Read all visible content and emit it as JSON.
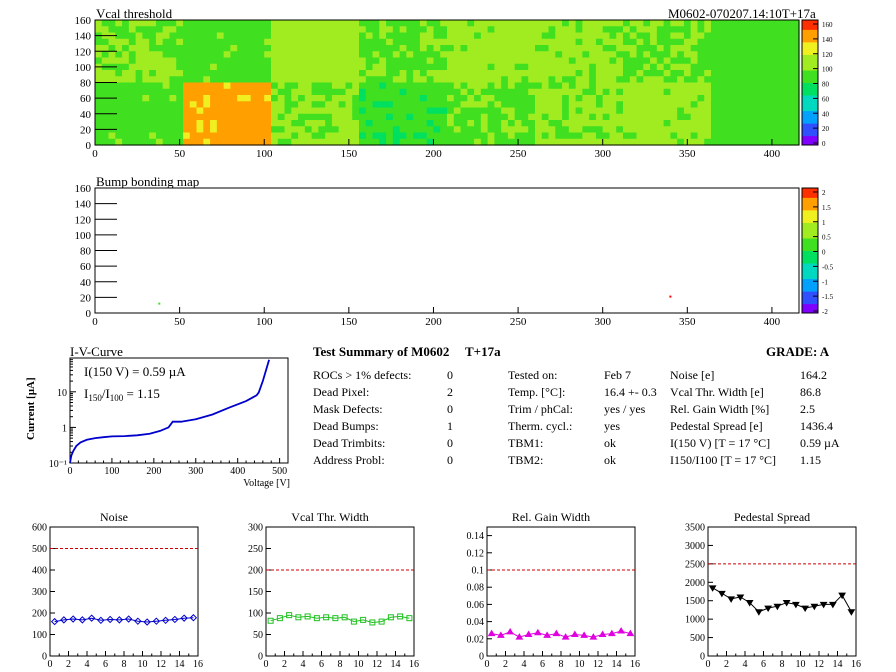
{
  "header_right": "M0602-070207.14:10T+17a",
  "vcal_map": {
    "title": "Vcal threshold",
    "x_ticks": [
      "0",
      "50",
      "100",
      "150",
      "200",
      "250",
      "300",
      "350",
      "400"
    ],
    "y_ticks": [
      "0",
      "20",
      "40",
      "60",
      "80",
      "100",
      "120",
      "140",
      "160"
    ],
    "xlim": [
      0,
      416
    ],
    "ylim": [
      0,
      160
    ],
    "z_ticks": [
      "0",
      "20",
      "40",
      "60",
      "80",
      "100",
      "120",
      "140",
      "160"
    ],
    "colors": [
      "#8000ff",
      "#3050ff",
      "#00a0ff",
      "#00d8c0",
      "#00e060",
      "#40e020",
      "#a0ec20",
      "#f0f020",
      "#ffa000",
      "#ff3000"
    ],
    "roc_levels": [
      [
        0.62,
        0.58,
        0.66,
        0.6,
        0.64,
        0.63,
        0.6,
        0.55
      ],
      [
        0.58,
        0.86,
        0.62,
        0.52,
        0.6,
        0.63,
        0.64,
        0.56
      ]
    ]
  },
  "bump_map": {
    "title": "Bump bonding map",
    "x_ticks": [
      "0",
      "50",
      "100",
      "150",
      "200",
      "250",
      "300",
      "350",
      "400"
    ],
    "y_ticks": [
      "0",
      "20",
      "40",
      "60",
      "80",
      "100",
      "120",
      "140",
      "160"
    ],
    "xlim": [
      0,
      416
    ],
    "ylim": [
      0,
      160
    ],
    "z_ticks": [
      "-2",
      "-1.5",
      "-1",
      "-0.5",
      "0",
      "0.5",
      "1",
      "1.5",
      "2"
    ],
    "hits": [
      {
        "x": 340,
        "y": 21,
        "color": "#ff0000"
      },
      {
        "x": 38,
        "y": 12,
        "color": "#40e020"
      }
    ]
  },
  "iv": {
    "title": "I-V-Curve",
    "line1": "I(150 V) = 0.59 µA",
    "line2_a": "I",
    "line2_sub1": "150",
    "line2_b": "/I",
    "line2_sub2": "100",
    "line2_c": " =  1.15",
    "ylabel": "Current [µA]",
    "xlabel": "Voltage [V]",
    "x_ticks": [
      "0",
      "100",
      "200",
      "300",
      "400",
      "500"
    ],
    "y_ticks": [
      "10⁻¹",
      "1",
      "10"
    ],
    "xlim": [
      0,
      520
    ],
    "ylog": [
      -1,
      1.95
    ],
    "points": [
      [
        0,
        0.1
      ],
      [
        3,
        0.16
      ],
      [
        8,
        0.22
      ],
      [
        15,
        0.3
      ],
      [
        25,
        0.38
      ],
      [
        40,
        0.45
      ],
      [
        60,
        0.5
      ],
      [
        80,
        0.53
      ],
      [
        100,
        0.56
      ],
      [
        130,
        0.57
      ],
      [
        160,
        0.6
      ],
      [
        190,
        0.66
      ],
      [
        215,
        0.8
      ],
      [
        235,
        1.0
      ],
      [
        245,
        1.45
      ],
      [
        265,
        1.45
      ],
      [
        300,
        1.7
      ],
      [
        340,
        2.3
      ],
      [
        380,
        3.6
      ],
      [
        420,
        5.5
      ],
      [
        445,
        8.0
      ],
      [
        450,
        9.5
      ],
      [
        460,
        20
      ],
      [
        470,
        50
      ],
      [
        475,
        80
      ]
    ]
  },
  "summary": {
    "title": "Test Summary of M0602",
    "temp_tag": "T+17a",
    "grade": "GRADE:  A",
    "col1": [
      {
        "label": "ROCs > 1% defects:",
        "value": "0"
      },
      {
        "label": "Dead Pixel:",
        "value": "2"
      },
      {
        "label": "Mask Defects:",
        "value": "0"
      },
      {
        "label": "Dead Bumps:",
        "value": "1"
      },
      {
        "label": "Dead Trimbits:",
        "value": "0"
      },
      {
        "label": "Address Probl:",
        "value": "0"
      }
    ],
    "col2": [
      {
        "label": "Tested on:",
        "value": "Feb 7"
      },
      {
        "label": "Temp. [°C]:",
        "value": "16.4 +- 0.3"
      },
      {
        "label": "Trim / phCal:",
        "value": "yes / yes"
      },
      {
        "label": "Therm. cycl.:",
        "value": "yes"
      },
      {
        "label": "TBM1:",
        "value": "ok"
      },
      {
        "label": "TBM2:",
        "value": "ok"
      }
    ],
    "col3": [
      {
        "label": "Noise [e]",
        "value": "164.2"
      },
      {
        "label": "Vcal Thr. Width [e]",
        "value": "86.8"
      },
      {
        "label": "Rel. Gain Width [%]",
        "value": "2.5"
      },
      {
        "label": "Pedestal Spread [e]",
        "value": "1436.4"
      },
      {
        "label": "I(150 V) [T = 17 °C]",
        "value": "0.59 µA"
      },
      {
        "label": "I150/I100  [T = 17 °C]",
        "value": "1.15"
      }
    ]
  },
  "chart_data": [
    {
      "type": "line",
      "title": "Noise",
      "x": [
        0,
        1,
        2,
        3,
        4,
        5,
        6,
        7,
        8,
        9,
        10,
        11,
        12,
        13,
        14,
        15
      ],
      "values": [
        160,
        168,
        172,
        168,
        176,
        166,
        170,
        168,
        172,
        162,
        158,
        162,
        166,
        170,
        176,
        178
      ],
      "ylim": [
        0,
        600
      ],
      "y_ticks": [
        0,
        100,
        200,
        300,
        400,
        500,
        600
      ],
      "x_ticks": [
        0,
        2,
        4,
        6,
        8,
        10,
        12,
        14,
        16
      ],
      "threshold": 500,
      "color": "#0000cc",
      "marker": "diamond"
    },
    {
      "type": "line",
      "title": "Vcal Thr. Width",
      "x": [
        0,
        1,
        2,
        3,
        4,
        5,
        6,
        7,
        8,
        9,
        10,
        11,
        12,
        13,
        14,
        15
      ],
      "values": [
        82,
        88,
        95,
        90,
        92,
        88,
        90,
        88,
        90,
        80,
        84,
        78,
        80,
        90,
        92,
        88
      ],
      "ylim": [
        0,
        300
      ],
      "y_ticks": [
        0,
        50,
        100,
        150,
        200,
        250,
        300
      ],
      "x_ticks": [
        0,
        2,
        4,
        6,
        8,
        10,
        12,
        14,
        16
      ],
      "threshold": 200,
      "color": "#20c020",
      "marker": "square"
    },
    {
      "type": "line",
      "title": "Rel. Gain Width",
      "x": [
        0,
        1,
        2,
        3,
        4,
        5,
        6,
        7,
        8,
        9,
        10,
        11,
        12,
        13,
        14,
        15
      ],
      "values": [
        0.026,
        0.024,
        0.028,
        0.022,
        0.025,
        0.027,
        0.024,
        0.026,
        0.022,
        0.025,
        0.024,
        0.022,
        0.025,
        0.026,
        0.029,
        0.026
      ],
      "ylim": [
        0,
        0.15
      ],
      "y_ticks": [
        0,
        0.02,
        0.04,
        0.06,
        0.08,
        0.1,
        0.12,
        0.14
      ],
      "x_ticks": [
        0,
        2,
        4,
        6,
        8,
        10,
        12,
        14,
        16
      ],
      "threshold": 0.1,
      "color": "#e000e0",
      "marker": "triangle"
    },
    {
      "type": "line",
      "title": "Pedestal Spread",
      "x": [
        0,
        1,
        2,
        3,
        4,
        5,
        6,
        7,
        8,
        9,
        10,
        11,
        12,
        13,
        14,
        15
      ],
      "values": [
        1850,
        1700,
        1550,
        1600,
        1450,
        1200,
        1300,
        1350,
        1450,
        1400,
        1300,
        1350,
        1400,
        1400,
        1650,
        1200
      ],
      "ylim": [
        0,
        3500
      ],
      "y_ticks": [
        0,
        500,
        1000,
        1500,
        2000,
        2500,
        3000,
        3500
      ],
      "x_ticks": [
        0,
        2,
        4,
        6,
        8,
        10,
        12,
        14,
        16
      ],
      "threshold": 2500,
      "color": "#000000",
      "marker": "triangle-down"
    }
  ]
}
